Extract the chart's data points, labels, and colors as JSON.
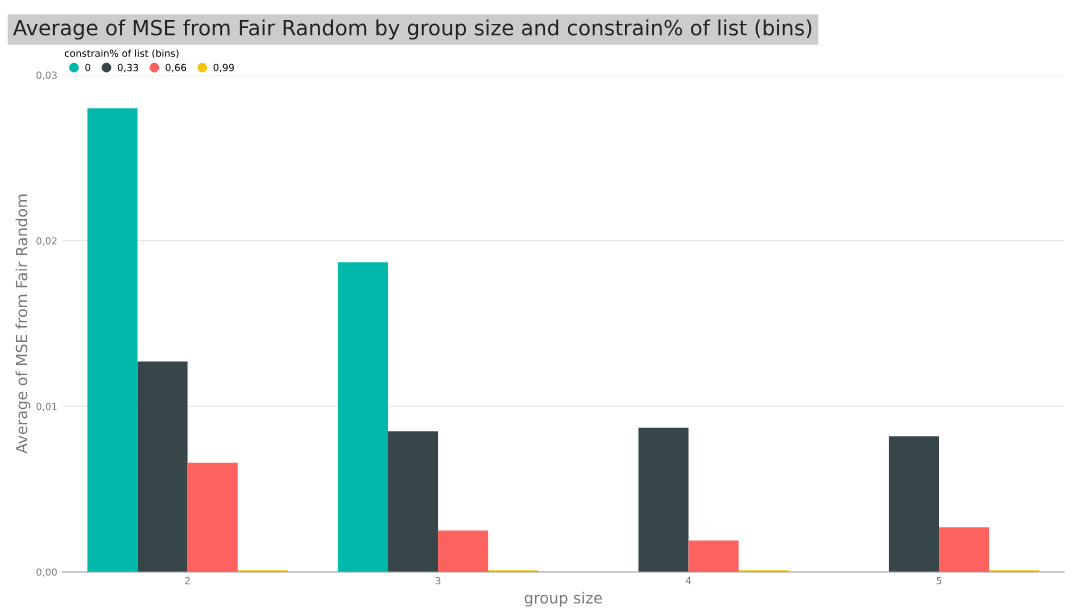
{
  "chart_data": {
    "type": "bar",
    "title": "Average of MSE from Fair Random by group size and constrain% of list (bins)",
    "xlabel": "group size",
    "ylabel": "Average of MSE from Fair Random",
    "legend_title": "constrain% of list (bins)",
    "categories": [
      "2",
      "3",
      "4",
      "5"
    ],
    "series": [
      {
        "name": "0",
        "color": "#01b8aa",
        "values": [
          0.028,
          0.0187,
          null,
          null
        ]
      },
      {
        "name": "0,33",
        "color": "#374649",
        "values": [
          0.0127,
          0.0085,
          0.0087,
          0.0082
        ]
      },
      {
        "name": "0,66",
        "color": "#fd625e",
        "values": [
          0.0066,
          0.0025,
          0.0019,
          0.0027
        ]
      },
      {
        "name": "0,99",
        "color": "#f2c80f",
        "values": [
          0.0001,
          0.0001,
          0.0001,
          0.0001
        ]
      }
    ],
    "ylim": [
      0,
      0.03
    ],
    "yticks": [
      {
        "value": 0,
        "label": "0,00"
      },
      {
        "value": 0.01,
        "label": "0,01"
      },
      {
        "value": 0.02,
        "label": "0,02"
      },
      {
        "value": 0.03,
        "label": "0,03"
      }
    ],
    "grid": "y",
    "legend": "top left"
  }
}
